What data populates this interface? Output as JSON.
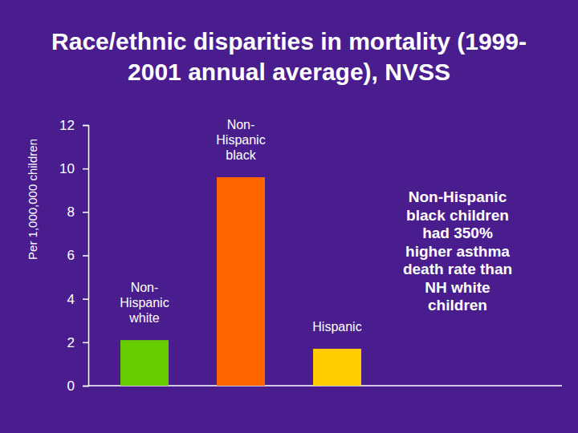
{
  "chart_data": {
    "type": "bar",
    "title": "Race/ethnic disparities in mortality (1999-2001 annual average), NVSS",
    "ylabel": "Per 1,000,000 children",
    "categories": [
      "Non-Hispanic white",
      "Non-Hispanic black",
      "Hispanic"
    ],
    "values": [
      2.1,
      9.6,
      1.7
    ],
    "colors": [
      "#66cc00",
      "#ff6600",
      "#ffcc00"
    ],
    "ylim": [
      0,
      12
    ],
    "yticks": [
      0,
      2,
      4,
      6,
      8,
      10,
      12
    ],
    "grid": false,
    "tick_labels": "y",
    "annotation": "Non-Hispanic black children had 350% higher asthma death rate than NH white children"
  }
}
